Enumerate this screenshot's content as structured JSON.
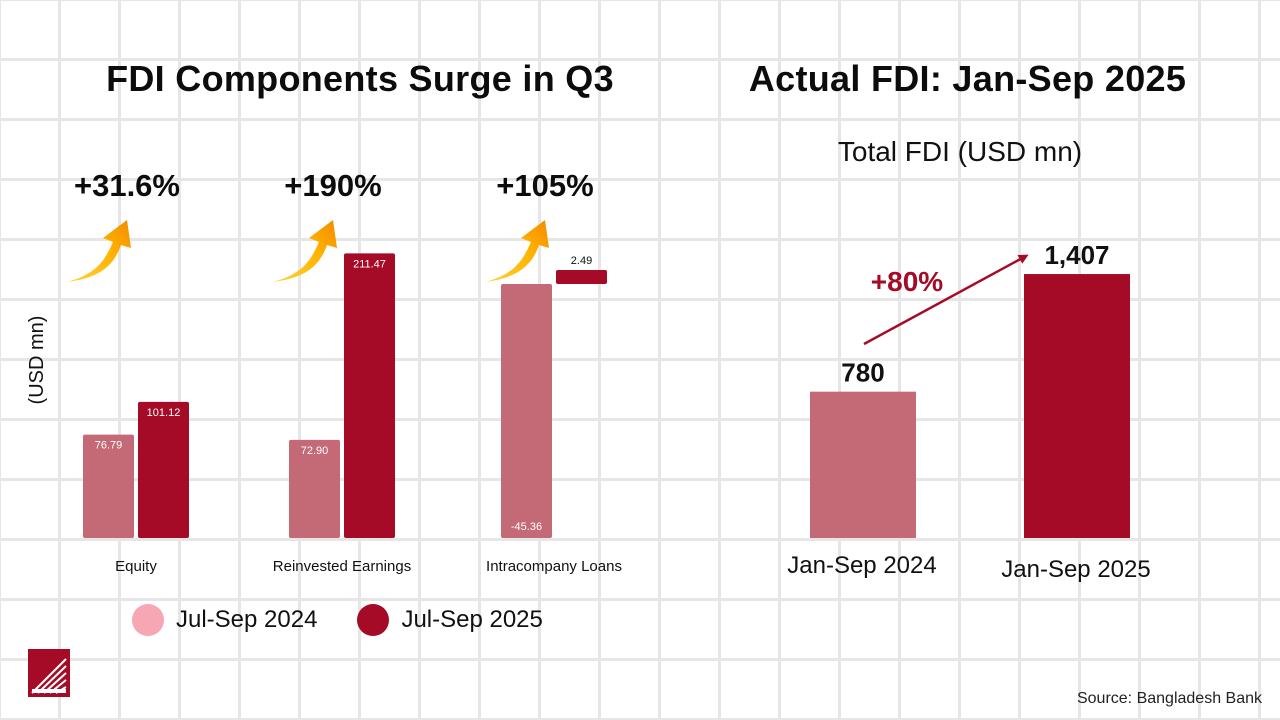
{
  "left_panel": {
    "title": "FDI Components Surge in Q3",
    "y_axis_label": "(USD mn)",
    "growth_labels": [
      "+31.6%",
      "+190%",
      "+105%"
    ]
  },
  "right_panel": {
    "title": "Actual FDI: Jan-Sep 2025",
    "subtitle": "Total FDI (USD mn)",
    "growth_label": "+80%"
  },
  "legend": [
    {
      "label": "Jul-Sep 2024",
      "color": "#f7a7b3"
    },
    {
      "label": "Jul-Sep 2025",
      "color": "#a50b26"
    }
  ],
  "source": "Source: Bangladesh Bank",
  "colors": {
    "bar_2024": "#c36a76",
    "bar_2025": "#a50b26",
    "arrow": "#a50b26",
    "growth_arrow": "orange-gradient"
  },
  "chart_data": [
    {
      "type": "bar",
      "title": "FDI Components Surge in Q3",
      "ylabel": "(USD mn)",
      "categories": [
        "Equity",
        "Reinvested Earnings",
        "Intracompany Loans"
      ],
      "series": [
        {
          "name": "Jul-Sep 2024",
          "values": [
            76.79,
            72.9,
            -45.36
          ],
          "labels": [
            "76.79",
            "72.90",
            "-45.36"
          ]
        },
        {
          "name": "Jul-Sep 2025",
          "values": [
            101.12,
            211.47,
            2.49
          ],
          "labels": [
            "101.12",
            "211.47",
            "2.49"
          ]
        }
      ],
      "growth": [
        "+31.6%",
        "+190%",
        "+105%"
      ],
      "legend": "bottom"
    },
    {
      "type": "bar",
      "title": "Actual FDI: Jan-Sep 2025",
      "subtitle": "Total FDI (USD mn)",
      "categories": [
        "Jan-Sep 2024",
        "Jan-Sep 2025"
      ],
      "values": [
        780,
        1407
      ],
      "labels": [
        "780",
        "1,407"
      ],
      "growth": "+80%"
    }
  ]
}
